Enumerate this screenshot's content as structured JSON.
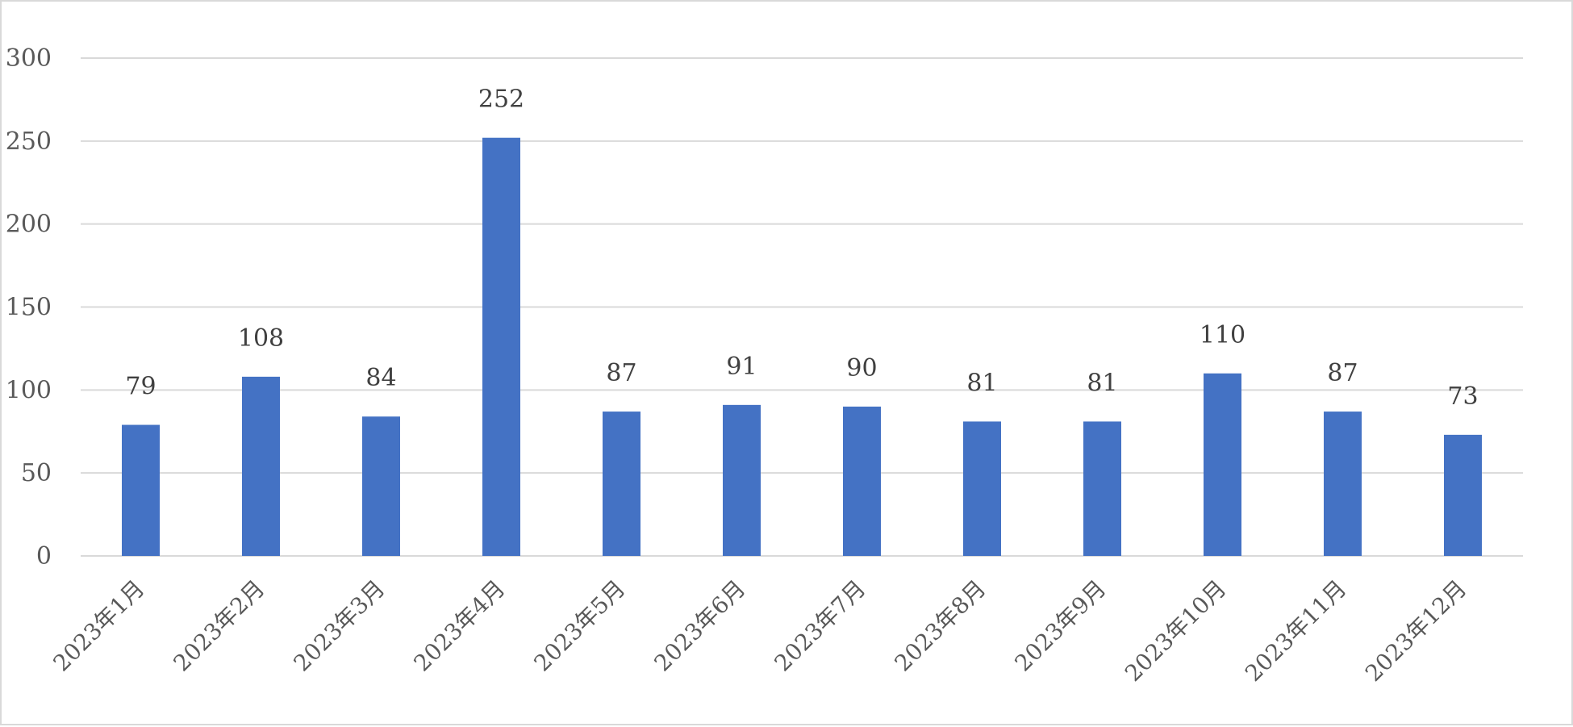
{
  "chart_data": {
    "type": "bar",
    "title": "",
    "xlabel": "",
    "ylabel": "",
    "categories": [
      "2023年1月",
      "2023年2月",
      "2023年3月",
      "2023年4月",
      "2023年5月",
      "2023年6月",
      "2023年7月",
      "2023年8月",
      "2023年9月",
      "2023年10月",
      "2023年11月",
      "2023年12月"
    ],
    "values": [
      79,
      108,
      84,
      252,
      87,
      91,
      90,
      81,
      81,
      110,
      87,
      73
    ],
    "ylim": [
      0,
      300
    ],
    "yticks": [
      "0",
      "50",
      "100",
      "150",
      "200",
      "250",
      "300"
    ],
    "data_labels": [
      "79",
      "108",
      "84",
      "252",
      "87",
      "91",
      "90",
      "81",
      "81",
      "110",
      "87",
      "73"
    ],
    "grid": true,
    "legend": "none",
    "bar_color": "#4472C4",
    "grid_color": "#d9d9d9"
  }
}
